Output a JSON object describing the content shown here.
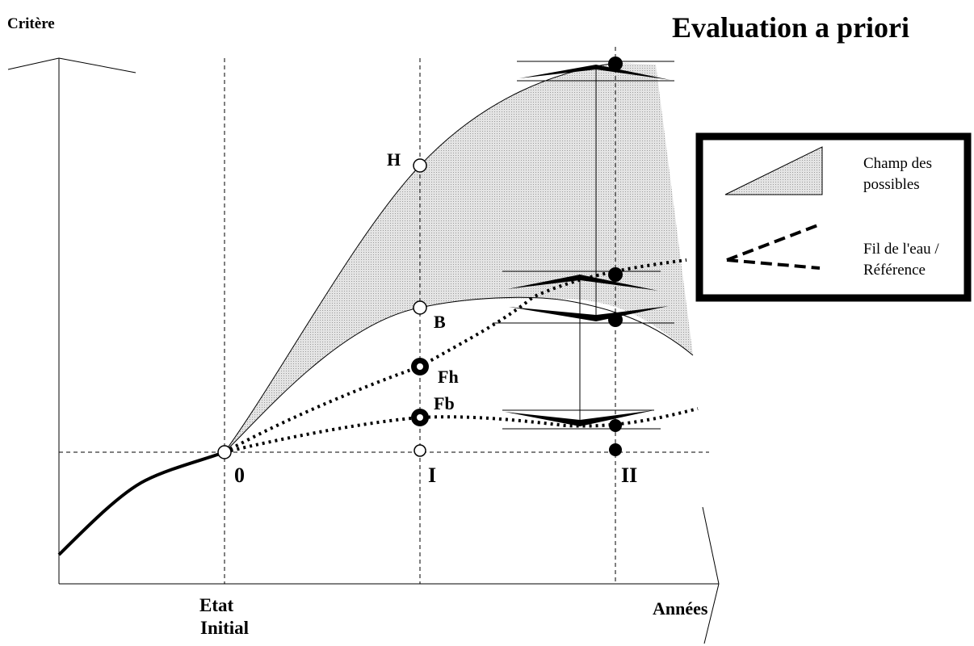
{
  "title": "Evaluation a priori",
  "axes": {
    "y_label": "Critère",
    "x_label": "Années"
  },
  "x_markers": {
    "initial_line1": "Etat",
    "initial_line2": "Initial",
    "zero": "0",
    "one": "I",
    "two": "II"
  },
  "points": {
    "high": "H",
    "low": "B",
    "forecast_high": "Fh",
    "forecast_low": "Fb"
  },
  "legend": {
    "field_line1": "Champ des",
    "field_line2": "possibles",
    "reference_line1": "Fil de l'eau /",
    "reference_line2": "Référence"
  },
  "colors": {
    "ink": "#000000",
    "shade": "#d6d6d6",
    "background": "#ffffff"
  }
}
